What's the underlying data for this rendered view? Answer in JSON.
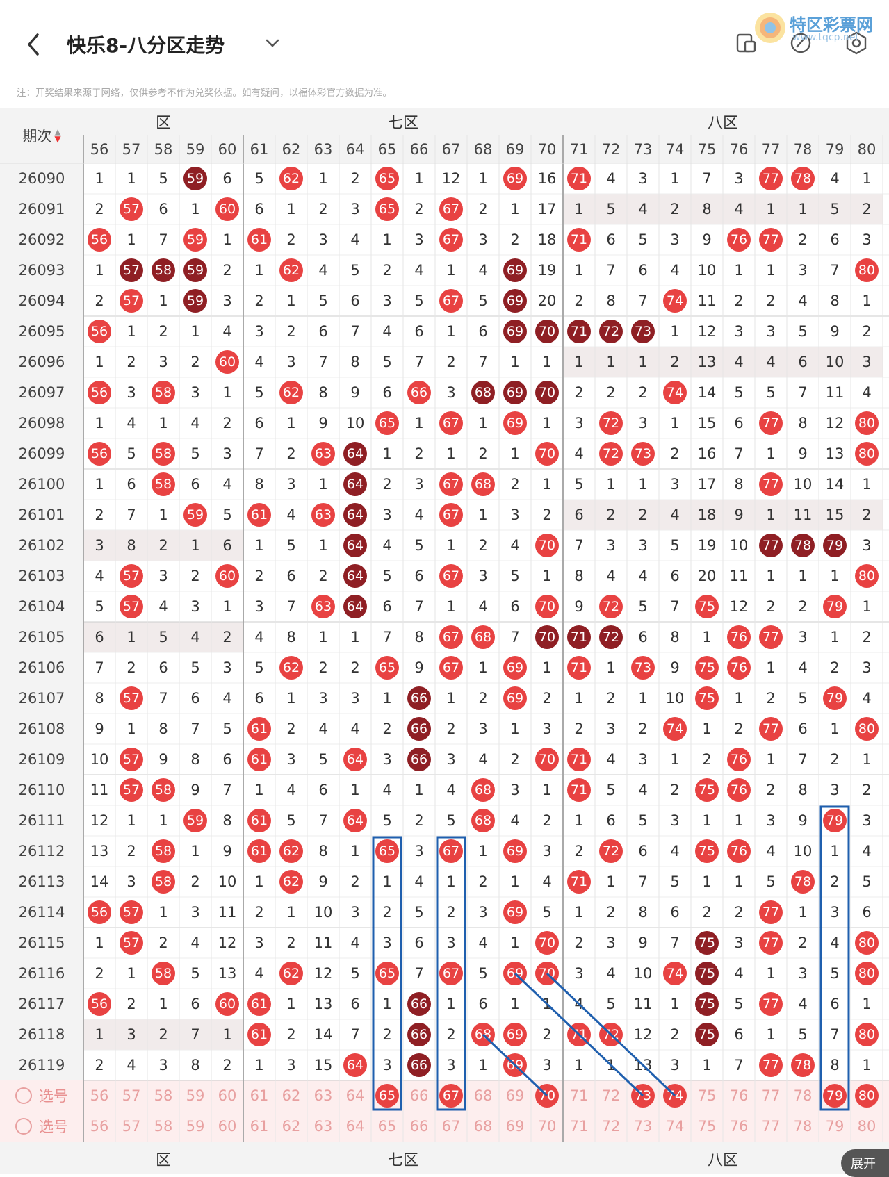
{
  "header": {
    "title": "快乐8-八分区走势",
    "logo_text": "特区彩票网",
    "logo_sub": "www.tqcp.net"
  },
  "notice": "注：开奖结果来源于网络，仅供参考不作为兑奖依据。如有疑问，以福体彩官方数据为准。",
  "table": {
    "issue_header": "期次",
    "zones": [
      "区",
      "七区",
      "八区"
    ],
    "columns": [
      56,
      57,
      58,
      59,
      60,
      61,
      62,
      63,
      64,
      65,
      66,
      67,
      68,
      69,
      70,
      71,
      72,
      73,
      74,
      75,
      76,
      77,
      78,
      79,
      80
    ],
    "rows": [
      {
        "issue": "26090",
        "cells": [
          "1",
          "1",
          "5",
          "59",
          "6",
          "5",
          "62",
          "1",
          "2",
          "65",
          "1",
          "12",
          "1",
          "69",
          "16",
          "71",
          "4",
          "3",
          "1",
          "7",
          "3",
          "77",
          "78",
          "4",
          "1"
        ]
      },
      {
        "issue": "26091",
        "cells": [
          "2",
          "57",
          "6",
          "1",
          "60",
          "6",
          "1",
          "2",
          "3",
          "65",
          "2",
          "67",
          "2",
          "1",
          "17",
          "1",
          "5",
          "4",
          "2",
          "8",
          "4",
          "1",
          "1",
          "5",
          "2"
        ]
      },
      {
        "issue": "26092",
        "cells": [
          "56",
          "1",
          "7",
          "59",
          "1",
          "61",
          "2",
          "3",
          "4",
          "1",
          "3",
          "67",
          "3",
          "2",
          "18",
          "71",
          "6",
          "5",
          "3",
          "9",
          "76",
          "77",
          "2",
          "6",
          "3"
        ]
      },
      {
        "issue": "26093",
        "cells": [
          "1",
          "57",
          "58",
          "59",
          "2",
          "1",
          "62",
          "4",
          "5",
          "2",
          "4",
          "1",
          "4",
          "69",
          "19",
          "1",
          "7",
          "6",
          "4",
          "10",
          "1",
          "1",
          "3",
          "7",
          "80"
        ]
      },
      {
        "issue": "26094",
        "cells": [
          "2",
          "57",
          "1",
          "59",
          "3",
          "2",
          "1",
          "5",
          "6",
          "3",
          "5",
          "67",
          "5",
          "69",
          "20",
          "2",
          "8",
          "7",
          "74",
          "11",
          "2",
          "2",
          "4",
          "8",
          "1"
        ]
      },
      {
        "issue": "26095",
        "cells": [
          "56",
          "1",
          "2",
          "1",
          "4",
          "3",
          "2",
          "6",
          "7",
          "4",
          "6",
          "1",
          "6",
          "69",
          "70",
          "71",
          "72",
          "73",
          "1",
          "12",
          "3",
          "3",
          "5",
          "9",
          "2"
        ]
      },
      {
        "issue": "26096",
        "cells": [
          "1",
          "2",
          "3",
          "2",
          "60",
          "4",
          "3",
          "7",
          "8",
          "5",
          "7",
          "2",
          "7",
          "1",
          "1",
          "1",
          "1",
          "1",
          "2",
          "13",
          "4",
          "4",
          "6",
          "10",
          "3"
        ]
      },
      {
        "issue": "26097",
        "cells": [
          "56",
          "3",
          "58",
          "3",
          "1",
          "5",
          "62",
          "8",
          "9",
          "6",
          "66",
          "3",
          "68",
          "69",
          "70",
          "2",
          "2",
          "2",
          "74",
          "14",
          "5",
          "5",
          "7",
          "11",
          "4"
        ]
      },
      {
        "issue": "26098",
        "cells": [
          "1",
          "4",
          "1",
          "4",
          "2",
          "6",
          "1",
          "9",
          "10",
          "65",
          "1",
          "67",
          "1",
          "69",
          "1",
          "3",
          "72",
          "3",
          "1",
          "15",
          "6",
          "77",
          "8",
          "12",
          "80"
        ]
      },
      {
        "issue": "26099",
        "cells": [
          "56",
          "5",
          "58",
          "5",
          "3",
          "7",
          "2",
          "63",
          "64",
          "1",
          "2",
          "1",
          "2",
          "1",
          "70",
          "4",
          "72",
          "73",
          "2",
          "16",
          "7",
          "1",
          "9",
          "13",
          "80"
        ]
      },
      {
        "issue": "26100",
        "cells": [
          "1",
          "6",
          "58",
          "6",
          "4",
          "8",
          "3",
          "1",
          "64",
          "2",
          "3",
          "67",
          "68",
          "2",
          "1",
          "5",
          "1",
          "1",
          "3",
          "17",
          "8",
          "77",
          "10",
          "14",
          "1"
        ]
      },
      {
        "issue": "26101",
        "cells": [
          "2",
          "7",
          "1",
          "59",
          "5",
          "61",
          "4",
          "63",
          "64",
          "3",
          "4",
          "67",
          "1",
          "3",
          "2",
          "6",
          "2",
          "2",
          "4",
          "18",
          "9",
          "1",
          "11",
          "15",
          "2"
        ]
      },
      {
        "issue": "26102",
        "cells": [
          "3",
          "8",
          "2",
          "1",
          "6",
          "1",
          "5",
          "1",
          "64",
          "4",
          "5",
          "1",
          "2",
          "4",
          "70",
          "7",
          "3",
          "3",
          "5",
          "19",
          "10",
          "77",
          "78",
          "79",
          "3"
        ]
      },
      {
        "issue": "26103",
        "cells": [
          "4",
          "57",
          "3",
          "2",
          "60",
          "2",
          "6",
          "2",
          "64",
          "5",
          "6",
          "67",
          "3",
          "5",
          "1",
          "8",
          "4",
          "4",
          "6",
          "20",
          "11",
          "1",
          "1",
          "1",
          "80"
        ]
      },
      {
        "issue": "26104",
        "cells": [
          "5",
          "57",
          "4",
          "3",
          "1",
          "3",
          "7",
          "63",
          "64",
          "6",
          "7",
          "1",
          "4",
          "6",
          "70",
          "9",
          "72",
          "5",
          "7",
          "75",
          "12",
          "2",
          "2",
          "79",
          "1"
        ]
      },
      {
        "issue": "26105",
        "cells": [
          "6",
          "1",
          "5",
          "4",
          "2",
          "4",
          "8",
          "1",
          "1",
          "7",
          "8",
          "67",
          "68",
          "7",
          "70",
          "71",
          "72",
          "6",
          "8",
          "1",
          "76",
          "77",
          "3",
          "1",
          "2"
        ]
      },
      {
        "issue": "26106",
        "cells": [
          "7",
          "2",
          "6",
          "5",
          "3",
          "5",
          "62",
          "2",
          "2",
          "65",
          "9",
          "67",
          "1",
          "69",
          "1",
          "71",
          "1",
          "73",
          "9",
          "75",
          "76",
          "1",
          "4",
          "2",
          "3"
        ]
      },
      {
        "issue": "26107",
        "cells": [
          "8",
          "57",
          "7",
          "6",
          "4",
          "6",
          "1",
          "3",
          "3",
          "1",
          "66",
          "1",
          "2",
          "69",
          "2",
          "1",
          "2",
          "1",
          "10",
          "75",
          "1",
          "2",
          "5",
          "79",
          "4"
        ]
      },
      {
        "issue": "26108",
        "cells": [
          "9",
          "1",
          "8",
          "7",
          "5",
          "61",
          "2",
          "4",
          "4",
          "2",
          "66",
          "2",
          "3",
          "1",
          "3",
          "2",
          "3",
          "2",
          "74",
          "1",
          "2",
          "77",
          "6",
          "1",
          "80"
        ]
      },
      {
        "issue": "26109",
        "cells": [
          "10",
          "57",
          "9",
          "8",
          "6",
          "61",
          "3",
          "5",
          "64",
          "3",
          "66",
          "3",
          "4",
          "2",
          "70",
          "71",
          "4",
          "3",
          "1",
          "2",
          "76",
          "1",
          "7",
          "2",
          "1"
        ]
      },
      {
        "issue": "26110",
        "cells": [
          "11",
          "57",
          "58",
          "9",
          "7",
          "1",
          "4",
          "6",
          "1",
          "4",
          "1",
          "4",
          "68",
          "3",
          "1",
          "71",
          "5",
          "4",
          "2",
          "75",
          "76",
          "2",
          "8",
          "3",
          "2"
        ]
      },
      {
        "issue": "26111",
        "cells": [
          "12",
          "1",
          "1",
          "59",
          "8",
          "61",
          "5",
          "7",
          "64",
          "5",
          "2",
          "5",
          "68",
          "4",
          "2",
          "1",
          "6",
          "5",
          "3",
          "1",
          "1",
          "3",
          "9",
          "79",
          "3"
        ]
      },
      {
        "issue": "26112",
        "cells": [
          "13",
          "2",
          "58",
          "1",
          "9",
          "61",
          "62",
          "8",
          "1",
          "65",
          "3",
          "67",
          "1",
          "69",
          "3",
          "2",
          "72",
          "6",
          "4",
          "75",
          "76",
          "4",
          "10",
          "1",
          "4"
        ]
      },
      {
        "issue": "26113",
        "cells": [
          "14",
          "3",
          "58",
          "2",
          "10",
          "1",
          "62",
          "9",
          "2",
          "1",
          "4",
          "1",
          "2",
          "1",
          "4",
          "71",
          "1",
          "7",
          "5",
          "1",
          "1",
          "5",
          "78",
          "2",
          "5"
        ]
      },
      {
        "issue": "26114",
        "cells": [
          "56",
          "57",
          "1",
          "3",
          "11",
          "2",
          "1",
          "10",
          "3",
          "2",
          "5",
          "2",
          "3",
          "69",
          "5",
          "1",
          "2",
          "8",
          "6",
          "2",
          "2",
          "77",
          "1",
          "3",
          "6"
        ]
      },
      {
        "issue": "26115",
        "cells": [
          "1",
          "57",
          "2",
          "4",
          "12",
          "3",
          "2",
          "11",
          "4",
          "3",
          "6",
          "3",
          "4",
          "1",
          "70",
          "2",
          "3",
          "9",
          "7",
          "75",
          "3",
          "77",
          "2",
          "4",
          "80"
        ]
      },
      {
        "issue": "26116",
        "cells": [
          "2",
          "1",
          "58",
          "5",
          "13",
          "4",
          "62",
          "12",
          "5",
          "65",
          "7",
          "67",
          "5",
          "69",
          "70",
          "3",
          "4",
          "10",
          "74",
          "75",
          "4",
          "1",
          "3",
          "5",
          "80"
        ]
      },
      {
        "issue": "26117",
        "cells": [
          "56",
          "2",
          "1",
          "6",
          "60",
          "61",
          "1",
          "13",
          "6",
          "1",
          "66",
          "1",
          "6",
          "1",
          "1",
          "4",
          "5",
          "11",
          "1",
          "75",
          "5",
          "77",
          "4",
          "6",
          "1"
        ]
      },
      {
        "issue": "26118",
        "cells": [
          "1",
          "3",
          "2",
          "7",
          "1",
          "61",
          "2",
          "14",
          "7",
          "2",
          "66",
          "2",
          "68",
          "69",
          "2",
          "71",
          "72",
          "12",
          "2",
          "75",
          "6",
          "1",
          "5",
          "7",
          "80"
        ]
      },
      {
        "issue": "26119",
        "cells": [
          "2",
          "4",
          "3",
          "8",
          "2",
          "1",
          "3",
          "15",
          "64",
          "3",
          "66",
          "3",
          "1",
          "69",
          "3",
          "1",
          "1",
          "13",
          "3",
          "1",
          "7",
          "77",
          "78",
          "8",
          "1"
        ]
      }
    ],
    "dark_balls": [
      "26090-59",
      "26093-57",
      "26093-58",
      "26093-59",
      "26093-69",
      "26094-59",
      "26094-69",
      "26095-69",
      "26095-70",
      "26095-71",
      "26095-72",
      "26095-73",
      "26097-68",
      "26097-69",
      "26097-70",
      "26099-64",
      "26100-64",
      "26101-64",
      "26102-64",
      "26103-64",
      "26104-64",
      "26102-77",
      "26102-78",
      "26102-79",
      "26105-70",
      "26105-71",
      "26105-72",
      "26107-66",
      "26108-66",
      "26109-66",
      "26117-66",
      "26118-66",
      "26119-66",
      "26115-75",
      "26116-75",
      "26117-75",
      "26118-75"
    ],
    "pick_row_1": {
      "label": "选号",
      "selected": [
        65,
        67,
        70,
        73,
        74,
        79,
        80
      ]
    },
    "pick_row_2": {
      "label": "选号"
    },
    "expand_label": "展开"
  }
}
